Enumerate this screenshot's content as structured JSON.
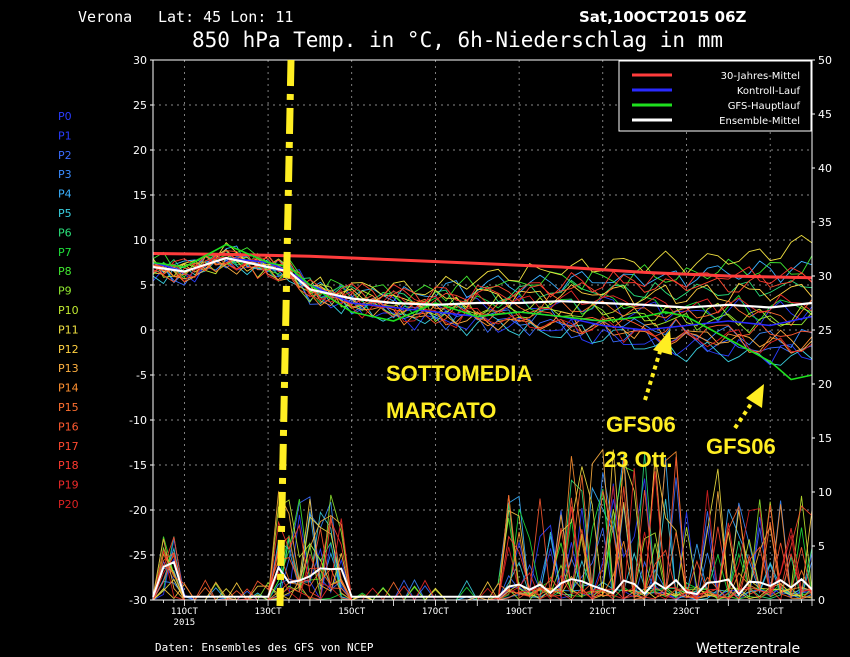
{
  "header": {
    "location": "Verona",
    "coords": "Lat: 45 Lon: 11",
    "run": "Sat,10OCT2015 06Z",
    "title": "850 hPa Temp. in °C, 6h-Niederschlag in mm"
  },
  "footer": {
    "source": "Daten: Ensembles des GFS von NCEP",
    "brand": "Wetterzentrale"
  },
  "member_labels": [
    "P0",
    "P1",
    "P2",
    "P3",
    "P4",
    "P5",
    "P6",
    "P7",
    "P8",
    "P9",
    "P10",
    "P11",
    "P12",
    "P13",
    "P14",
    "P15",
    "P16",
    "P17",
    "P18",
    "P19",
    "P20"
  ],
  "member_colors": [
    "#2a3cff",
    "#2a3cff",
    "#3a6cff",
    "#3a8cff",
    "#3ab0ff",
    "#3ad0e0",
    "#2ae07a",
    "#1ee03a",
    "#40e830",
    "#90e830",
    "#c0e830",
    "#f0e040",
    "#ffd040",
    "#ffb040",
    "#ff9030",
    "#ff7030",
    "#ff5a30",
    "#ff4a30",
    "#ff3a30",
    "#ee2a2a",
    "#dd2222"
  ],
  "legend": [
    {
      "label": "30-Jahres-Mittel",
      "color": "#ff3c3c"
    },
    {
      "label": "Kontroll-Lauf",
      "color": "#2a2aff"
    },
    {
      "label": "GFS-Hauptlauf",
      "color": "#1ee01e"
    },
    {
      "label": "Ensemble-Mittel",
      "color": "#ffffff"
    }
  ],
  "annotations": {
    "sottomedia_1": "SOTTOMEDIA",
    "sottomedia_2": "MARCATO",
    "gfs_a_1": "GFS06",
    "gfs_a_2": "23 Ott.",
    "gfs_b": "GFS06",
    "annotation_color": "#ffee22"
  },
  "chart_data": {
    "type": "line",
    "title": "850 hPa Temp. in °C, 6h-Niederschlag in mm",
    "x_ticks": [
      "11OCT",
      "13OCT",
      "15OCT",
      "17OCT",
      "19OCT",
      "21OCT",
      "23OCT",
      "25OCT"
    ],
    "x_sub_label": "2015",
    "y_left_range": [
      -30,
      30
    ],
    "y_left_ticks": [
      30,
      25,
      20,
      15,
      10,
      5,
      0,
      -5,
      -10,
      -15,
      -20,
      -25,
      -30
    ],
    "y_right_range": [
      0,
      50
    ],
    "y_right_ticks": [
      50,
      45,
      40,
      35,
      30,
      25,
      20,
      15,
      10,
      5,
      0
    ],
    "x_range_days": [
      10.25,
      26.0
    ],
    "grid": true,
    "legend_position": "top-right",
    "run_start_marker_x": 13.0,
    "series": [
      {
        "name": "30-Jahres-Mittel",
        "x": [
          10.25,
          12,
          14,
          16,
          18,
          20,
          22,
          24,
          26
        ],
        "y": [
          8.5,
          8.4,
          8.2,
          7.8,
          7.4,
          7.0,
          6.4,
          6.0,
          5.8
        ]
      },
      {
        "name": "Kontroll-Lauf",
        "x": [
          10.25,
          11,
          12,
          13,
          13.5,
          14,
          15,
          16,
          17,
          18,
          19,
          20,
          21,
          22,
          23,
          24,
          25,
          26
        ],
        "y": [
          7.5,
          6.5,
          8.0,
          7.5,
          6.5,
          5.0,
          3.0,
          2.5,
          2.0,
          1.5,
          2.0,
          1.5,
          0.5,
          0.0,
          0.5,
          1.0,
          0.5,
          1.5
        ]
      },
      {
        "name": "GFS-Hauptlauf",
        "x": [
          10.25,
          11,
          12,
          13,
          13.5,
          14,
          15,
          16,
          17,
          18,
          19,
          20,
          21,
          22,
          22.5,
          23,
          24,
          25,
          25.5,
          26
        ],
        "y": [
          7.5,
          7.0,
          9.5,
          7.5,
          7.0,
          5.0,
          2.0,
          1.0,
          3.0,
          1.5,
          2.0,
          1.5,
          1.0,
          1.5,
          2.0,
          1.5,
          -1.0,
          -3.5,
          -5.5,
          -5.0
        ]
      },
      {
        "name": "Ensemble-Mittel",
        "x": [
          10.25,
          11,
          12,
          13,
          13.5,
          14,
          15,
          16,
          17,
          18,
          19,
          20,
          21,
          22,
          23,
          24,
          25,
          26
        ],
        "y": [
          7.0,
          6.5,
          8.0,
          7.0,
          6.5,
          4.5,
          3.5,
          3.0,
          2.8,
          3.0,
          3.0,
          3.2,
          3.0,
          2.8,
          2.5,
          2.8,
          2.5,
          3.0
        ]
      }
    ]
  }
}
